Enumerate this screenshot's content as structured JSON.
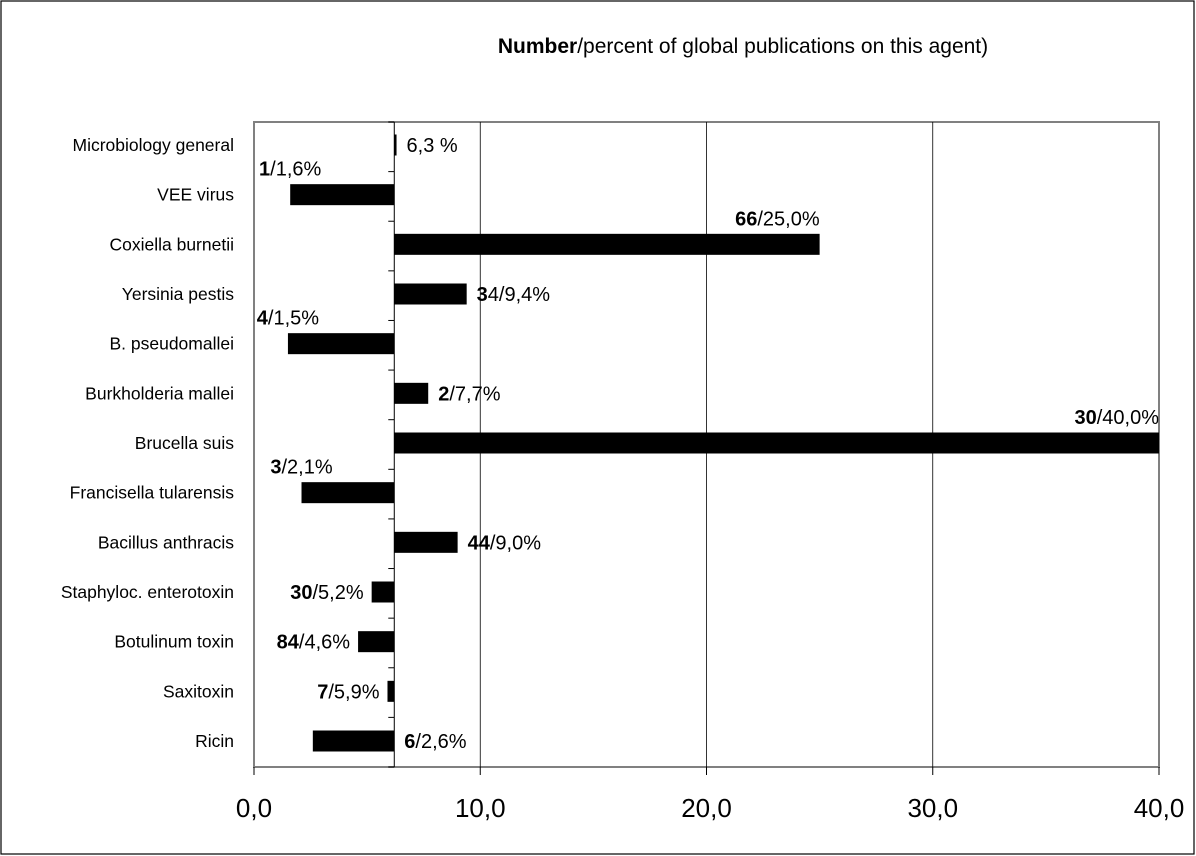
{
  "chart_data": {
    "type": "bar",
    "orientation": "horizontal",
    "title_bold": "Number",
    "title_rest": "/percent of global publications on this agent)",
    "xlabel": "",
    "ylabel": "",
    "xlim": [
      0,
      40
    ],
    "base_value": 6.2,
    "x_ticks": [
      "0,0",
      "10,0",
      "20,0",
      "30,0",
      "40,0"
    ],
    "x_tick_values": [
      0,
      10,
      20,
      30,
      40
    ],
    "grid": true,
    "legend": "none",
    "bar_color": "#000000",
    "categories": [
      "Microbiology general",
      "VEE virus",
      "Coxiella burnetii",
      "Yersinia pestis",
      "B. pseudomallei",
      "Burkholderia mallei",
      "Brucella suis",
      "Francisella tularensis",
      "Bacillus anthracis",
      "Staphyloc. enterotoxin",
      "Botulinum toxin",
      "Saxitoxin",
      "Ricin"
    ],
    "values": [
      6.3,
      1.6,
      25.0,
      9.4,
      1.5,
      7.7,
      40.0,
      2.1,
      9.0,
      5.2,
      4.6,
      5.9,
      2.6
    ],
    "labels": [
      {
        "bold": "",
        "rest": "6,3 %",
        "position": "right"
      },
      {
        "bold": "1",
        "rest": "/1,6%",
        "position": "above"
      },
      {
        "bold": "66",
        "rest": "/25,0%",
        "position": "above"
      },
      {
        "bold": "3",
        "rest": "4/9,4%",
        "position": "right"
      },
      {
        "bold": "4",
        "rest": "/1,5%",
        "position": "above"
      },
      {
        "bold": "2",
        "rest": "/7,7%",
        "position": "right"
      },
      {
        "bold": "30",
        "rest": "/40,0%",
        "position": "above"
      },
      {
        "bold": "3",
        "rest": "/2,1%",
        "position": "above"
      },
      {
        "bold": "44",
        "rest": "/9,0%",
        "position": "right"
      },
      {
        "bold": "30",
        "rest": "/5,2%",
        "position": "left"
      },
      {
        "bold": "84",
        "rest": "/4,6%",
        "position": "left"
      },
      {
        "bold": "7",
        "rest": "/5,9%",
        "position": "left"
      },
      {
        "bold": "6",
        "rest": "/2,6%",
        "position": "right"
      }
    ]
  }
}
